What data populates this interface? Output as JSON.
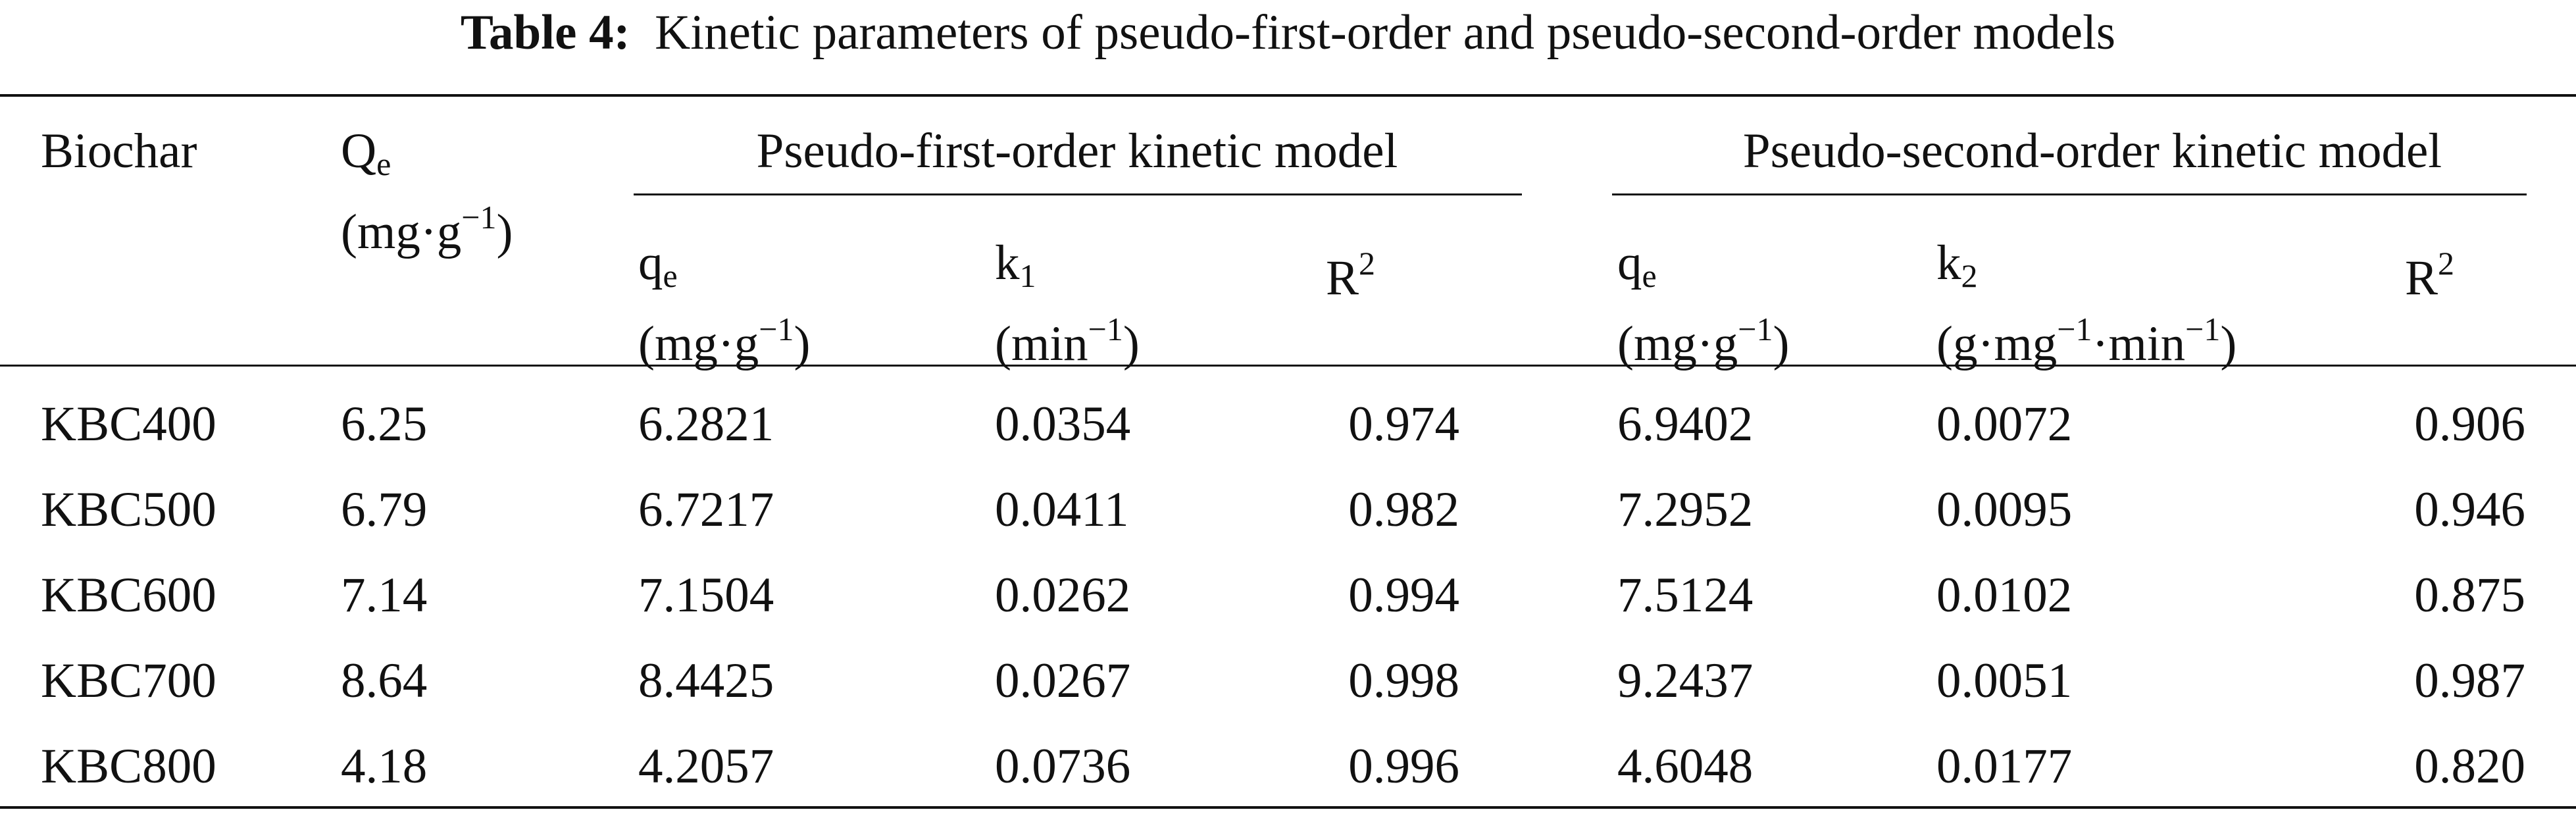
{
  "title": {
    "label": "Table 4:",
    "text": "Kinetic parameters of pseudo-first-order and pseudo-second-order models"
  },
  "table": {
    "header": {
      "biochar": "Biochar",
      "Qe": {
        "symbol": "Q",
        "sub": "e",
        "unit": [
          "(mg·g",
          "−1",
          ")"
        ]
      },
      "groups": [
        "Pseudo-first-order kinetic model",
        "Pseudo-second-order kinetic model"
      ],
      "columns": [
        {
          "symbol": "q",
          "sub": "e",
          "unit": [
            "(mg·g",
            "−1",
            ")"
          ]
        },
        {
          "symbol": "k",
          "sub": "1",
          "unit": [
            "(min",
            "−1",
            ")"
          ]
        },
        {
          "symbol": "R",
          "sup": "2"
        },
        {
          "symbol": "q",
          "sub": "e",
          "unit": [
            "(mg·g",
            "−1",
            ")"
          ]
        },
        {
          "symbol": "k",
          "sub": "2",
          "unit": [
            "(g·mg",
            "−1",
            "·min",
            "−1",
            ")"
          ]
        },
        {
          "symbol": "R",
          "sup": "2"
        }
      ]
    },
    "rows": [
      [
        "KBC400",
        "6.25",
        "6.2821",
        "0.0354",
        "0.974",
        "6.9402",
        "0.0072",
        "0.906"
      ],
      [
        "KBC500",
        "6.79",
        "6.7217",
        "0.0411",
        "0.982",
        "7.2952",
        "0.0095",
        "0.946"
      ],
      [
        "KBC600",
        "7.14",
        "7.1504",
        "0.0262",
        "0.994",
        "7.5124",
        "0.0102",
        "0.875"
      ],
      [
        "KBC700",
        "8.64",
        "8.4425",
        "0.0267",
        "0.998",
        "9.2437",
        "0.0051",
        "0.987"
      ],
      [
        "KBC800",
        "4.18",
        "4.2057",
        "0.0736",
        "0.996",
        "4.6048",
        "0.0177",
        "0.820"
      ]
    ]
  }
}
